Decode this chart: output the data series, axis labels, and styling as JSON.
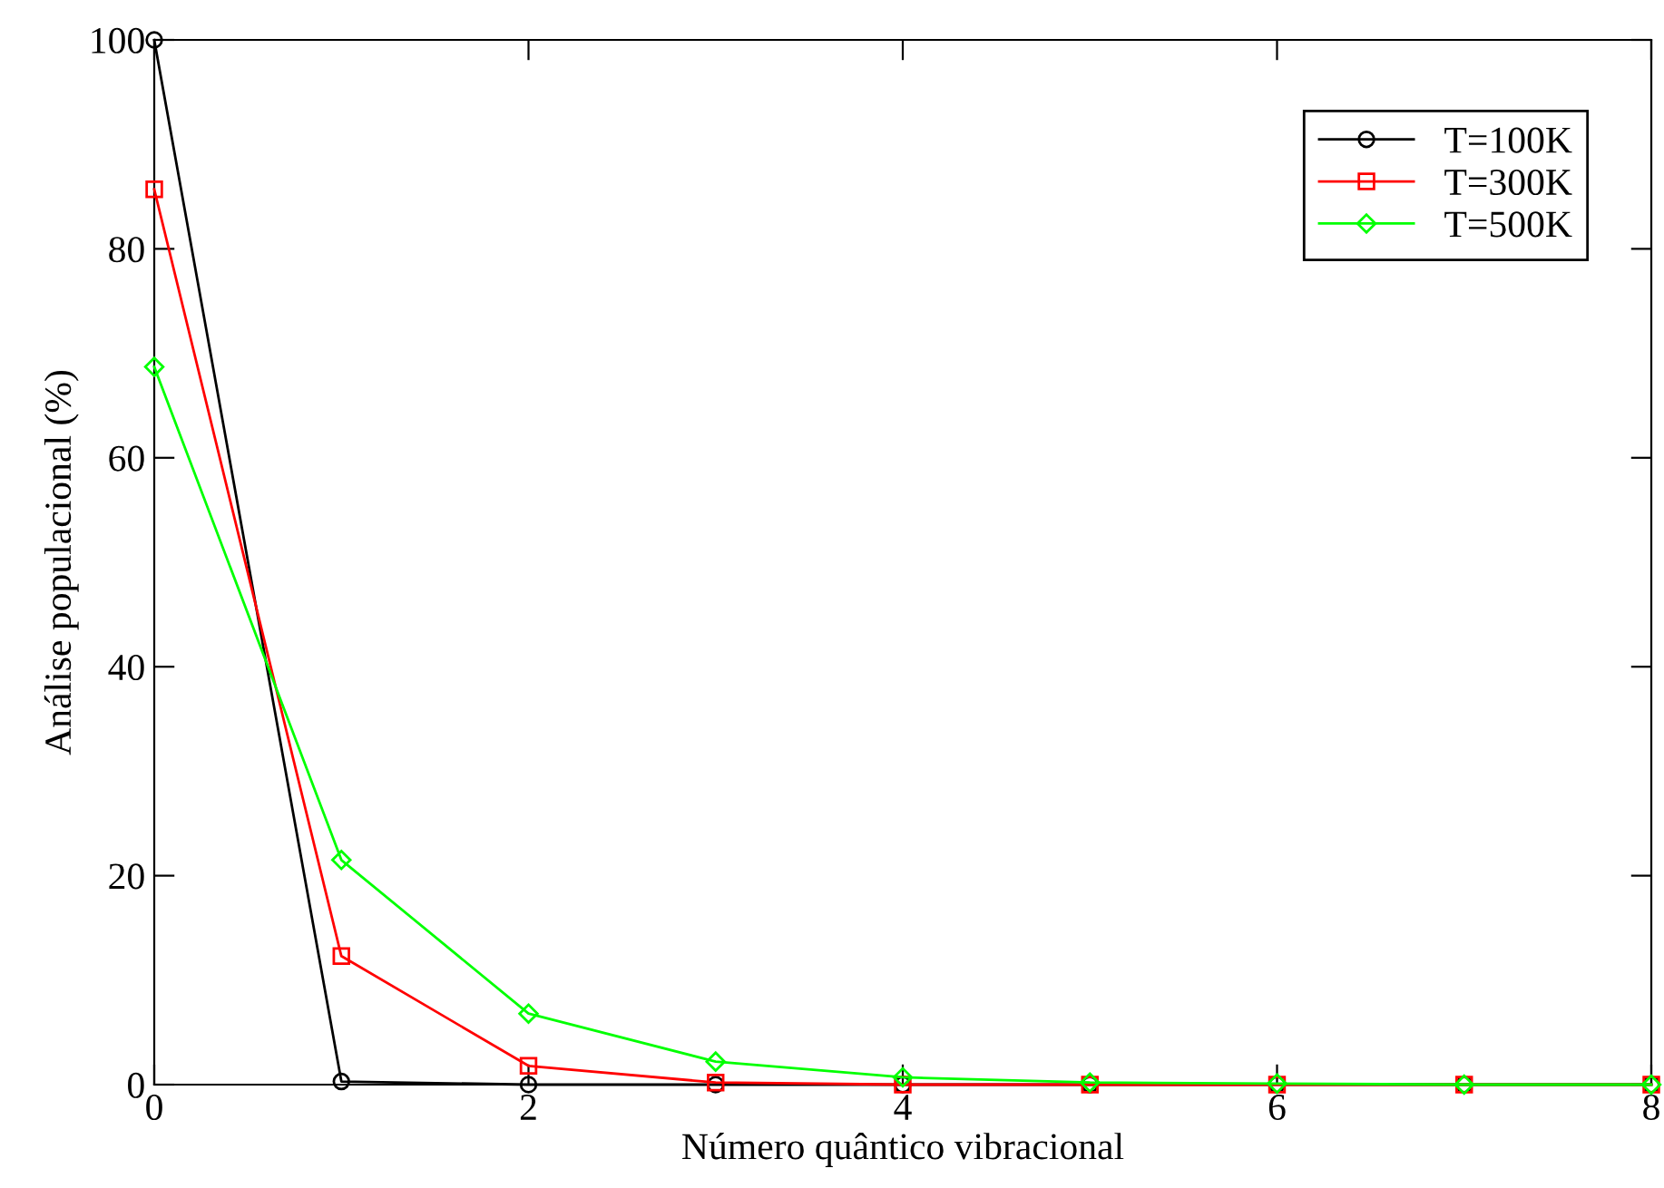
{
  "chart_data": {
    "type": "line",
    "xlabel": "Número quântico vibracional",
    "ylabel": "Análise populacional (%)",
    "x": [
      0,
      1,
      2,
      3,
      4,
      5,
      6,
      7,
      8
    ],
    "series": [
      {
        "name": "T=100K",
        "color": "#000000",
        "marker": "circle",
        "values": [
          100,
          0.3,
          0,
          0,
          0,
          0,
          0,
          0,
          0
        ]
      },
      {
        "name": "T=300K",
        "color": "#ff0000",
        "marker": "square",
        "values": [
          85.7,
          12.3,
          1.8,
          0.2,
          0,
          0,
          0,
          0,
          0
        ]
      },
      {
        "name": "T=500K",
        "color": "#00ff00",
        "marker": "diamond",
        "values": [
          68.7,
          21.5,
          6.8,
          2.2,
          0.7,
          0.2,
          0.1,
          0,
          0
        ]
      }
    ],
    "xlim": [
      0,
      8
    ],
    "xticks": [
      0,
      2,
      4,
      6,
      8
    ],
    "ylim": [
      0,
      100
    ],
    "yticks": [
      0,
      20,
      40,
      60,
      80,
      100
    ],
    "grid": false,
    "legend": "top right",
    "line_style": "solid"
  }
}
